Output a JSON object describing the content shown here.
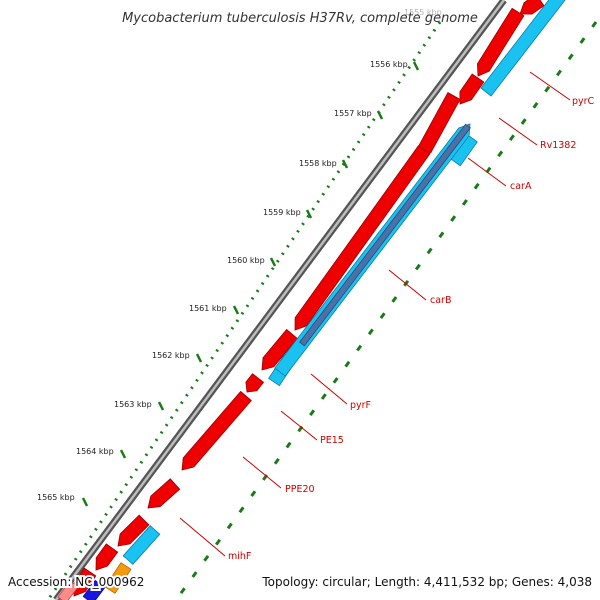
{
  "title": "Mycobacterium tuberculosis H37Rv, complete genome",
  "accession": "Accession: NC_000962",
  "summary": "Topology: circular; Length: 4,411,532 bp; Genes: 4,038",
  "colors": {
    "backbone": "#777777",
    "forward_gene": "#ee0000",
    "forward_gene_dark": "#990000",
    "reverse_gene": "#19c2f0",
    "reverse_gene_dark": "#0a7fa6",
    "overlap_gene": "#4a72a8",
    "tick_green": "#1a7a1a",
    "label_red": "#cc0000",
    "orange_gene": "#f59a10",
    "blue_gene": "#1818e0"
  },
  "kbp_ticks": [
    {
      "label": "1555 kbp"
    },
    {
      "label": "1556 kbp"
    },
    {
      "label": "1557 kbp"
    },
    {
      "label": "1558 kbp"
    },
    {
      "label": "1559 kbp"
    },
    {
      "label": "1560 kbp"
    },
    {
      "label": "1561 kbp"
    },
    {
      "label": "1562 kbp"
    },
    {
      "label": "1563 kbp"
    },
    {
      "label": "1564 kbp"
    },
    {
      "label": "1565 kbp"
    }
  ],
  "gene_labels": [
    {
      "name": "pyrC"
    },
    {
      "name": "Rv1382"
    },
    {
      "name": "carA"
    },
    {
      "name": "carB"
    },
    {
      "name": "pyrF"
    },
    {
      "name": "PE15"
    },
    {
      "name": "PPE20"
    },
    {
      "name": "mihF"
    }
  ]
}
